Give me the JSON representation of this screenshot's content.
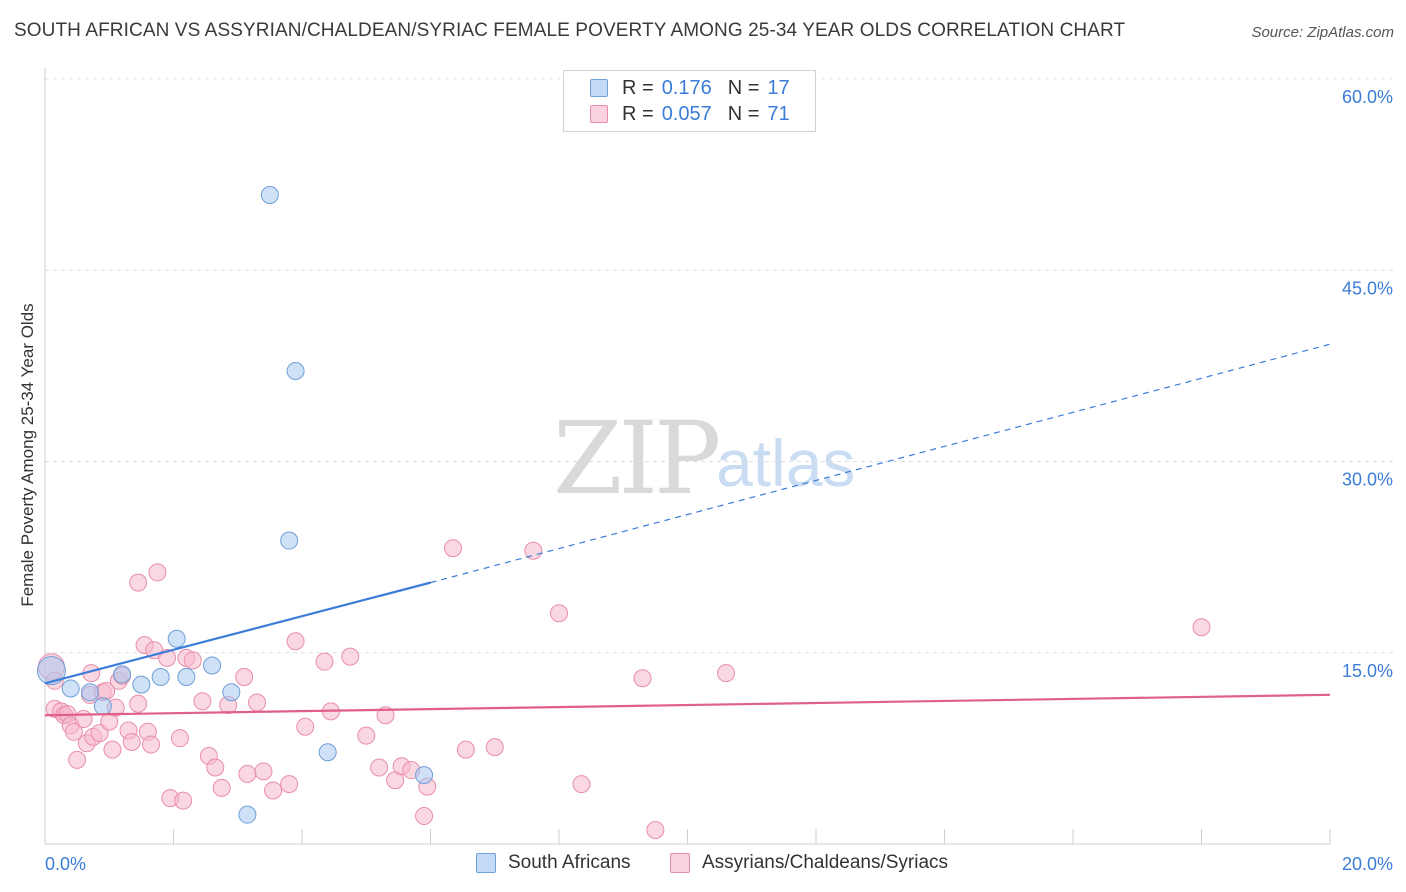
{
  "title": "SOUTH AFRICAN VS ASSYRIAN/CHALDEAN/SYRIAC FEMALE POVERTY AMONG 25-34 YEAR OLDS CORRELATION CHART",
  "source": "Source: ZipAtlas.com",
  "watermark": {
    "zip": "ZIP",
    "atlas": "atlas"
  },
  "legend": {
    "rows": [
      {
        "r_label": "R =",
        "r_value": "0.176",
        "n_label": "N =",
        "n_value": "17",
        "color": "#a8c8f0"
      },
      {
        "r_label": "R =",
        "r_value": "0.057",
        "n_label": "N =",
        "n_value": "71",
        "color": "#f5b8cb"
      }
    ]
  },
  "bottom_legend": {
    "series1": "South Africans",
    "series2": "Assyrians/Chaldeans/Syriacs"
  },
  "chart_data": {
    "type": "scatter",
    "ylabel": "Female Poverty Among 25-34 Year Olds",
    "xlim": [
      0,
      20
    ],
    "ylim": [
      0,
      60
    ],
    "x_tick_labels": [
      "0.0%",
      "20.0%"
    ],
    "y_tick_labels": [
      "15.0%",
      "30.0%",
      "45.0%",
      "60.0%"
    ],
    "y_ticks": [
      15,
      30,
      45,
      60
    ],
    "grid": true,
    "legend_position": "top-center",
    "colors": {
      "south_africans_fill": "#a8c8f0",
      "south_africans_stroke": "#6f9fd8",
      "south_africans_line": "#3b7dd8",
      "assyrians_fill": "#f5b8cb",
      "assyrians_stroke": "#e98eaa",
      "assyrians_line": "#e0608a",
      "tick_label": "#3b7dd8"
    },
    "series": [
      {
        "name": "South Africans",
        "points": [
          [
            0.1,
            13.6
          ],
          [
            0.4,
            12.2
          ],
          [
            0.7,
            11.9
          ],
          [
            0.9,
            10.8
          ],
          [
            1.2,
            13.3
          ],
          [
            1.5,
            12.5
          ],
          [
            1.8,
            13.1
          ],
          [
            2.05,
            16.1
          ],
          [
            2.2,
            13.1
          ],
          [
            2.6,
            14.0
          ],
          [
            2.9,
            11.9
          ],
          [
            3.15,
            2.3
          ],
          [
            3.5,
            50.9
          ],
          [
            3.8,
            23.8
          ],
          [
            3.9,
            37.1
          ],
          [
            4.4,
            7.2
          ],
          [
            5.9,
            5.4
          ]
        ],
        "trend": {
          "x0": 0,
          "y0": 12.6,
          "x1": 6.0,
          "y1": 20.5,
          "x_end": 20,
          "y_end": 39.2
        }
      },
      {
        "name": "Assyrians/Chaldeans/Syriacs",
        "points": [
          [
            0.1,
            13.9
          ],
          [
            0.15,
            12.8
          ],
          [
            0.15,
            10.6
          ],
          [
            0.25,
            10.4
          ],
          [
            0.3,
            10.1
          ],
          [
            0.35,
            10.2
          ],
          [
            0.4,
            9.3
          ],
          [
            0.45,
            8.8
          ],
          [
            0.5,
            6.6
          ],
          [
            0.6,
            9.8
          ],
          [
            0.65,
            7.9
          ],
          [
            0.7,
            11.7
          ],
          [
            0.72,
            13.4
          ],
          [
            0.75,
            8.4
          ],
          [
            0.85,
            8.7
          ],
          [
            0.9,
            11.9
          ],
          [
            0.95,
            12.0
          ],
          [
            1.0,
            9.6
          ],
          [
            1.05,
            7.4
          ],
          [
            1.1,
            10.7
          ],
          [
            1.15,
            12.8
          ],
          [
            1.2,
            13.2
          ],
          [
            1.3,
            8.9
          ],
          [
            1.35,
            8.0
          ],
          [
            1.45,
            11.0
          ],
          [
            1.45,
            20.5
          ],
          [
            1.55,
            15.6
          ],
          [
            1.6,
            8.8
          ],
          [
            1.65,
            7.8
          ],
          [
            1.7,
            15.2
          ],
          [
            1.75,
            21.3
          ],
          [
            1.9,
            14.6
          ],
          [
            1.95,
            3.6
          ],
          [
            2.1,
            8.3
          ],
          [
            2.15,
            3.4
          ],
          [
            2.2,
            14.6
          ],
          [
            2.3,
            14.4
          ],
          [
            2.45,
            11.2
          ],
          [
            2.55,
            6.9
          ],
          [
            2.65,
            6.0
          ],
          [
            2.75,
            4.4
          ],
          [
            2.85,
            10.9
          ],
          [
            3.1,
            13.1
          ],
          [
            3.15,
            5.5
          ],
          [
            3.3,
            11.1
          ],
          [
            3.4,
            5.7
          ],
          [
            3.55,
            4.2
          ],
          [
            3.8,
            4.7
          ],
          [
            3.9,
            15.9
          ],
          [
            4.05,
            9.2
          ],
          [
            4.35,
            14.3
          ],
          [
            4.45,
            10.4
          ],
          [
            4.75,
            14.7
          ],
          [
            5.0,
            8.5
          ],
          [
            5.2,
            6.0
          ],
          [
            5.3,
            10.1
          ],
          [
            5.45,
            5.0
          ],
          [
            5.55,
            6.1
          ],
          [
            5.7,
            5.8
          ],
          [
            5.9,
            2.2
          ],
          [
            5.95,
            4.5
          ],
          [
            6.35,
            23.2
          ],
          [
            6.55,
            7.4
          ],
          [
            7.0,
            7.6
          ],
          [
            7.6,
            23.0
          ],
          [
            8.0,
            18.1
          ],
          [
            8.35,
            4.7
          ],
          [
            9.3,
            13.0
          ],
          [
            9.5,
            1.1
          ],
          [
            10.6,
            13.4
          ],
          [
            18.0,
            17.0
          ]
        ],
        "trend": {
          "x0": 0,
          "y0": 10.1,
          "x1": 20,
          "y1": 11.7
        }
      }
    ]
  }
}
